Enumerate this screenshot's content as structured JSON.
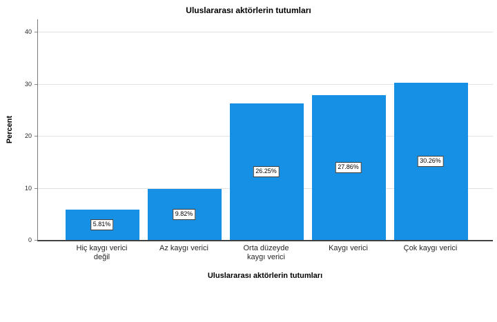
{
  "chart_data": {
    "type": "bar",
    "title": "Uluslararası aktörlerin tutumları",
    "xlabel": "Uluslararası aktörlerin tutumları",
    "ylabel": "Percent",
    "categories": [
      "Hiç kaygı verici değil",
      "Az kaygı verici",
      "Orta düzeyde kaygı verici",
      "Kaygı verici",
      "Çok kaygı verici"
    ],
    "category_lines": [
      [
        "Hiç kaygı verici",
        "değil"
      ],
      [
        "Az kaygı verici"
      ],
      [
        "Orta düzeyde",
        "kaygı verici"
      ],
      [
        "Kaygı verici"
      ],
      [
        "Çok kaygı verici"
      ]
    ],
    "values": [
      5.81,
      9.82,
      26.25,
      27.86,
      30.26
    ],
    "value_labels": [
      "5.81%",
      "9.82%",
      "26.25%",
      "27.86%",
      "30.26%"
    ],
    "ylim": [
      0,
      40
    ],
    "yticks": [
      0,
      10,
      20,
      30,
      40
    ],
    "grid": true,
    "legend": null,
    "colors": {
      "bar": "#1590e4",
      "gridline": "#e3e3e3",
      "axis_left": "#7a7a7a",
      "axis_bottom": "#404040",
      "text": "#262626",
      "value_label_bg": "#ffffff",
      "value_label_border": "#333333",
      "background": "#ffffff"
    }
  }
}
